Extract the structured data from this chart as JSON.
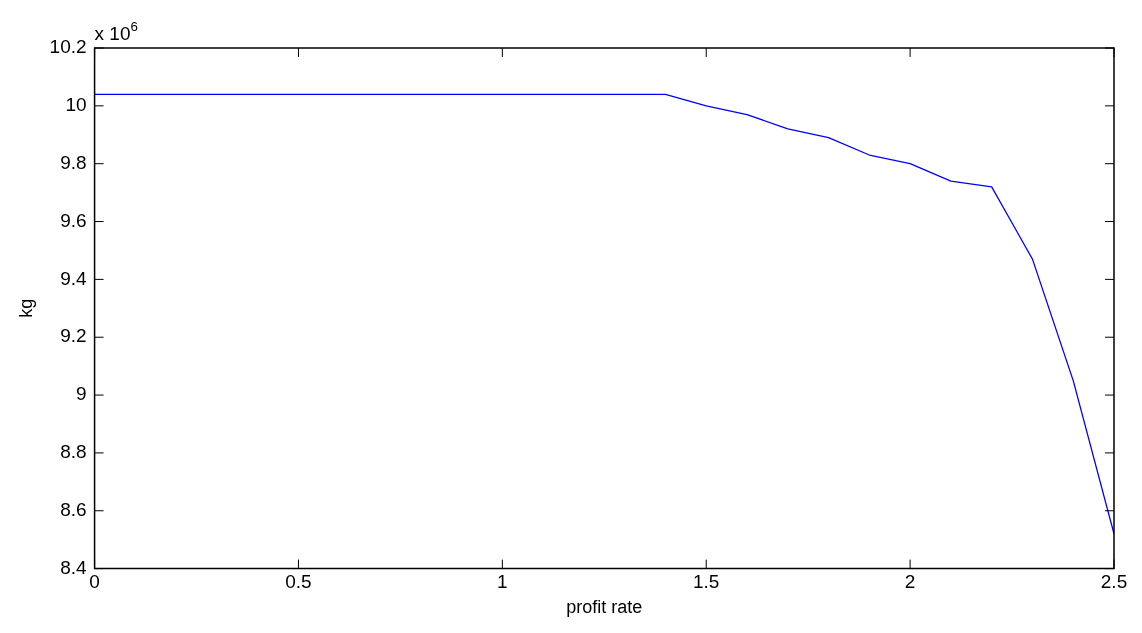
{
  "chart_data": {
    "type": "line",
    "xlabel": "profit rate",
    "ylabel": "kg",
    "annotations": [
      "x 10$^{6}$"
    ],
    "series": [
      {
        "color": "#0000ff",
        "x": [
          0,
          1.4,
          1.5,
          1.6,
          1.7,
          1.8,
          1.9,
          2.0,
          2.1,
          2.2,
          2.3,
          2.4,
          2.5
        ],
        "values": [
          10.04,
          10.04,
          10.0,
          9.97,
          9.92,
          9.89,
          9.83,
          9.8,
          9.74,
          9.72,
          9.47,
          9.05,
          8.52
        ]
      }
    ],
    "xlim": [
      0,
      2.5
    ],
    "xticks": [
      0,
      0.5,
      1,
      1.5,
      2,
      2.5
    ],
    "ylim": [
      8.4,
      10.2
    ],
    "yticks": [
      8.4,
      8.6,
      8.8,
      9,
      9.2,
      9.4,
      9.6,
      9.8,
      10,
      10.2
    ],
    "grid": false,
    "legend": false,
    "marker": "none",
    "line_style": "solid"
  }
}
